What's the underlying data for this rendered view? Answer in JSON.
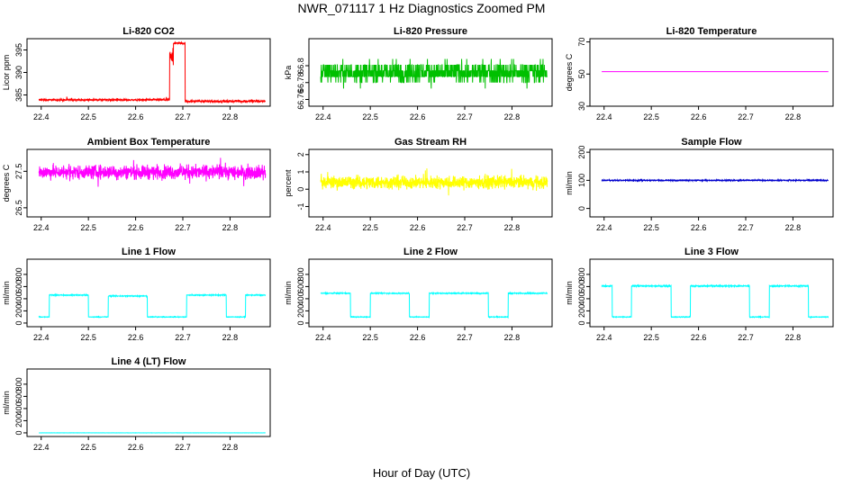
{
  "title": "NWR_071117  1 Hz Diagnostics Zoomed PM",
  "x_label": "Hour of Day (UTC)",
  "chart_data": [
    {
      "type": "line",
      "title": "Li-820 CO2",
      "ylabel": "Licor ppm",
      "color": "#ff0000",
      "xlim": [
        22.37,
        22.885
      ],
      "ylim": [
        382.5,
        397.5
      ],
      "xticks": [
        22.4,
        22.5,
        22.6,
        22.7,
        22.8
      ],
      "yticks": [
        385,
        390,
        395
      ],
      "x_range": [
        22.395,
        22.875
      ],
      "segments": [
        {
          "from": 22.395,
          "to": 22.672,
          "level": 383.9,
          "noise": 0.35
        },
        {
          "from": 22.672,
          "to": 22.68,
          "level": 393.5,
          "noise": 2.0
        },
        {
          "from": 22.68,
          "to": 22.705,
          "level": 396.5,
          "noise": 0.35
        },
        {
          "from": 22.705,
          "to": 22.875,
          "level": 383.6,
          "noise": 0.35
        }
      ]
    },
    {
      "type": "line",
      "title": "Li-820 Pressure",
      "ylabel": "kPa",
      "color": "#00c000",
      "xlim": [
        22.37,
        22.885
      ],
      "ylim": [
        66.752,
        66.832
      ],
      "xticks": [
        22.4,
        22.5,
        22.6,
        22.7,
        22.8
      ],
      "yticks": [
        66.76,
        66.78,
        66.8
      ],
      "x_range": [
        22.395,
        22.875
      ],
      "segments": [
        {
          "from": 22.395,
          "to": 22.875,
          "level": 66.792,
          "noise": 0.018,
          "quantum": 0.007
        }
      ]
    },
    {
      "type": "line",
      "title": "Li-820 Temperature",
      "ylabel": "degrees C",
      "color": "#ff00ff",
      "xlim": [
        22.37,
        22.885
      ],
      "ylim": [
        30,
        72
      ],
      "xticks": [
        22.4,
        22.5,
        22.6,
        22.7,
        22.8
      ],
      "yticks": [
        30,
        50,
        70
      ],
      "x_range": [
        22.395,
        22.875
      ],
      "segments": [
        {
          "from": 22.395,
          "to": 22.875,
          "level": 51.5,
          "noise": 0
        }
      ]
    },
    {
      "type": "line",
      "title": "Ambient Box Temperature",
      "ylabel": "degrees C",
      "color": "#ff00ff",
      "xlim": [
        22.37,
        22.885
      ],
      "ylim": [
        26.25,
        28.1
      ],
      "xticks": [
        22.4,
        22.5,
        22.6,
        22.7,
        22.8
      ],
      "yticks": [
        26.5,
        27.5
      ],
      "x_range": [
        22.395,
        22.875
      ],
      "segments": [
        {
          "from": 22.395,
          "to": 22.875,
          "level": 27.48,
          "noise": 0.28
        }
      ]
    },
    {
      "type": "line",
      "title": "Gas Stream RH",
      "ylabel": "percent",
      "color": "#ffff00",
      "xlim": [
        22.37,
        22.885
      ],
      "ylim": [
        -1.6,
        2.3
      ],
      "xticks": [
        22.4,
        22.5,
        22.6,
        22.7,
        22.8
      ],
      "yticks": [
        -1,
        0,
        1,
        2
      ],
      "x_range": [
        22.395,
        22.875
      ],
      "segments": [
        {
          "from": 22.395,
          "to": 22.875,
          "level": 0.4,
          "noise": 0.55
        }
      ]
    },
    {
      "type": "line",
      "title": "Sample Flow",
      "ylabel": "ml/min",
      "color": "#0000cd",
      "xlim": [
        22.37,
        22.885
      ],
      "ylim": [
        -30,
        210
      ],
      "xticks": [
        22.4,
        22.5,
        22.6,
        22.7,
        22.8
      ],
      "yticks": [
        0,
        100,
        200
      ],
      "x_range": [
        22.395,
        22.875
      ],
      "segments": [
        {
          "from": 22.395,
          "to": 22.875,
          "level": 100,
          "noise": 3
        }
      ]
    },
    {
      "type": "line",
      "title": "Line 1 Flow",
      "ylabel": "ml/min",
      "color": "#00ffff",
      "xlim": [
        22.37,
        22.885
      ],
      "ylim": [
        -60,
        1050
      ],
      "xticks": [
        22.4,
        22.5,
        22.6,
        22.7,
        22.8
      ],
      "yticks": [
        0,
        200,
        400,
        600,
        800
      ],
      "x_range": [
        22.395,
        22.875
      ],
      "segments": [
        {
          "from": 22.395,
          "to": 22.417,
          "level": 100,
          "noise": 8
        },
        {
          "from": 22.417,
          "to": 22.5,
          "level": 460,
          "noise": 12
        },
        {
          "from": 22.5,
          "to": 22.542,
          "level": 100,
          "noise": 8
        },
        {
          "from": 22.542,
          "to": 22.625,
          "level": 445,
          "noise": 12
        },
        {
          "from": 22.625,
          "to": 22.708,
          "level": 100,
          "noise": 8
        },
        {
          "from": 22.708,
          "to": 22.792,
          "level": 460,
          "noise": 12
        },
        {
          "from": 22.792,
          "to": 22.833,
          "level": 100,
          "noise": 8
        },
        {
          "from": 22.833,
          "to": 22.875,
          "level": 460,
          "noise": 12
        }
      ]
    },
    {
      "type": "line",
      "title": "Line 2 Flow",
      "ylabel": "ml/min",
      "color": "#00ffff",
      "xlim": [
        22.37,
        22.885
      ],
      "ylim": [
        -60,
        1050
      ],
      "xticks": [
        22.4,
        22.5,
        22.6,
        22.7,
        22.8
      ],
      "yticks": [
        0,
        200,
        400,
        600,
        800
      ],
      "x_range": [
        22.395,
        22.875
      ],
      "segments": [
        {
          "from": 22.395,
          "to": 22.458,
          "level": 490,
          "noise": 12
        },
        {
          "from": 22.458,
          "to": 22.5,
          "level": 100,
          "noise": 8
        },
        {
          "from": 22.5,
          "to": 22.583,
          "level": 490,
          "noise": 12
        },
        {
          "from": 22.583,
          "to": 22.625,
          "level": 100,
          "noise": 8
        },
        {
          "from": 22.625,
          "to": 22.75,
          "level": 490,
          "noise": 12
        },
        {
          "from": 22.75,
          "to": 22.792,
          "level": 100,
          "noise": 8
        },
        {
          "from": 22.792,
          "to": 22.875,
          "level": 490,
          "noise": 12
        }
      ]
    },
    {
      "type": "line",
      "title": "Line 3 Flow",
      "ylabel": "ml/min",
      "color": "#00ffff",
      "xlim": [
        22.37,
        22.885
      ],
      "ylim": [
        -60,
        1050
      ],
      "xticks": [
        22.4,
        22.5,
        22.6,
        22.7,
        22.8
      ],
      "yticks": [
        0,
        200,
        400,
        600,
        800
      ],
      "x_range": [
        22.395,
        22.875
      ],
      "segments": [
        {
          "from": 22.395,
          "to": 22.417,
          "level": 610,
          "noise": 15
        },
        {
          "from": 22.417,
          "to": 22.458,
          "level": 100,
          "noise": 8
        },
        {
          "from": 22.458,
          "to": 22.542,
          "level": 610,
          "noise": 15
        },
        {
          "from": 22.542,
          "to": 22.583,
          "level": 100,
          "noise": 8
        },
        {
          "from": 22.583,
          "to": 22.708,
          "level": 610,
          "noise": 15
        },
        {
          "from": 22.708,
          "to": 22.75,
          "level": 100,
          "noise": 8
        },
        {
          "from": 22.75,
          "to": 22.833,
          "level": 610,
          "noise": 15
        },
        {
          "from": 22.833,
          "to": 22.875,
          "level": 100,
          "noise": 8
        }
      ]
    },
    {
      "type": "line",
      "title": "Line 4 (LT) Flow",
      "ylabel": "ml/min",
      "color": "#00ffff",
      "xlim": [
        22.37,
        22.885
      ],
      "ylim": [
        -60,
        1050
      ],
      "xticks": [
        22.4,
        22.5,
        22.6,
        22.7,
        22.8
      ],
      "yticks": [
        0,
        200,
        400,
        600,
        800
      ],
      "x_range": [
        22.395,
        22.875
      ],
      "segments": [
        {
          "from": 22.395,
          "to": 22.875,
          "level": 0,
          "noise": 2
        }
      ]
    }
  ]
}
